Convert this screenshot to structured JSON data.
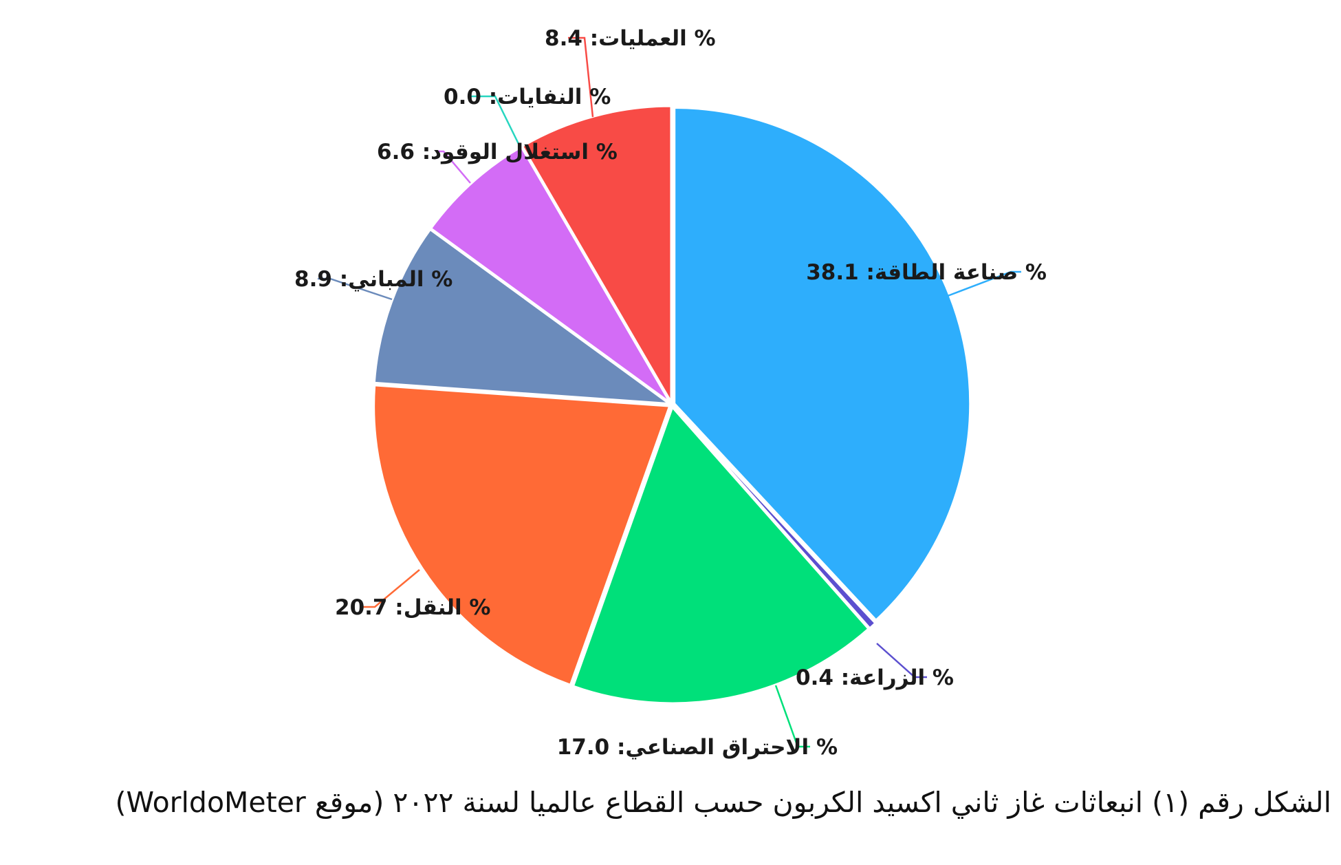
{
  "caption": "الشكل رقم (١) انبعاثات غاز ثاني اكسيد الكربون حسب القطاع عالميا لسنة ٢٠٢٢ (موقع WorldoMeter)",
  "chart_data": {
    "type": "pie",
    "unit": "%",
    "slices": [
      {
        "label": "صناعة الطاقة",
        "value": 38.1,
        "color": "#2eaefc",
        "text": "% صناعة الطاقة: 38.1"
      },
      {
        "label": "الزراعة",
        "value": 0.4,
        "color": "#5b4fcf",
        "text": "% الزراعة: 0.4"
      },
      {
        "label": "الاحتراق الصناعي",
        "value": 17.0,
        "color": "#00e07a",
        "text": "% الاحتراق الصناعي: 17.0"
      },
      {
        "label": "النقل",
        "value": 20.7,
        "color": "#ff6a36",
        "text": "% النقل: 20.7"
      },
      {
        "label": "المباني",
        "value": 8.9,
        "color": "#6b8bbb",
        "text": "% المباني: 8.9"
      },
      {
        "label": "استغلال الوقود",
        "value": 6.6,
        "color": "#d36cf6",
        "text": "% استغلال الوقود: 6.6"
      },
      {
        "label": "النفايات",
        "value": 0.0,
        "color": "#27d6c0",
        "text": "% النفايات: 0.0"
      },
      {
        "label": "العمليات",
        "value": 8.4,
        "color": "#f84b46",
        "text": "% العمليات: 8.4"
      }
    ]
  }
}
